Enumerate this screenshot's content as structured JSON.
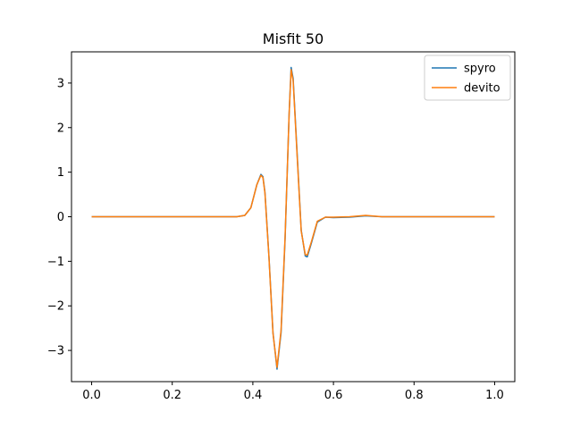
{
  "chart_data": {
    "type": "line",
    "title": "Misfit 50",
    "xlabel": "",
    "ylabel": "",
    "xlim": [
      -0.05,
      1.05
    ],
    "ylim": [
      -3.7,
      3.7
    ],
    "grid": false,
    "legend_position": "top-right",
    "x_ticks": [
      0.0,
      0.2,
      0.4,
      0.6,
      0.8,
      1.0
    ],
    "x_tick_labels": [
      "0.0",
      "0.2",
      "0.4",
      "0.6",
      "0.8",
      "1.0"
    ],
    "y_ticks": [
      -3,
      -2,
      -1,
      0,
      1,
      2,
      3
    ],
    "y_tick_labels": [
      "−3",
      "−2",
      "−1",
      "0",
      "1",
      "2",
      "3"
    ],
    "series": [
      {
        "name": "spyro",
        "color": "#1f77b4",
        "x": [
          0.0,
          0.1,
          0.2,
          0.3,
          0.36,
          0.38,
          0.395,
          0.41,
          0.42,
          0.425,
          0.43,
          0.44,
          0.45,
          0.46,
          0.47,
          0.48,
          0.49,
          0.495,
          0.5,
          0.51,
          0.52,
          0.53,
          0.535,
          0.545,
          0.56,
          0.58,
          0.6,
          0.64,
          0.68,
          0.72,
          0.8,
          0.9,
          1.0
        ],
        "y": [
          0.0,
          0.0,
          0.0,
          0.0,
          0.0,
          0.03,
          0.2,
          0.72,
          0.95,
          0.9,
          0.55,
          -0.9,
          -2.6,
          -3.42,
          -2.6,
          -0.5,
          2.3,
          3.35,
          3.1,
          1.4,
          -0.3,
          -0.88,
          -0.9,
          -0.6,
          -0.12,
          -0.01,
          -0.02,
          -0.01,
          0.02,
          0.0,
          0.0,
          0.0,
          0.0
        ]
      },
      {
        "name": "devito",
        "color": "#ff7f0e",
        "x": [
          0.0,
          0.1,
          0.2,
          0.3,
          0.36,
          0.38,
          0.395,
          0.41,
          0.42,
          0.425,
          0.43,
          0.44,
          0.45,
          0.46,
          0.47,
          0.48,
          0.49,
          0.495,
          0.5,
          0.51,
          0.52,
          0.53,
          0.535,
          0.545,
          0.56,
          0.58,
          0.6,
          0.64,
          0.68,
          0.72,
          0.8,
          0.9,
          1.0
        ],
        "y": [
          0.0,
          0.0,
          0.0,
          0.0,
          0.0,
          0.03,
          0.2,
          0.72,
          0.93,
          0.88,
          0.53,
          -0.92,
          -2.62,
          -3.38,
          -2.55,
          -0.45,
          2.3,
          3.3,
          3.05,
          1.35,
          -0.32,
          -0.85,
          -0.86,
          -0.57,
          -0.1,
          -0.01,
          -0.01,
          0.0,
          0.03,
          0.0,
          0.0,
          0.0,
          0.0
        ]
      }
    ]
  }
}
